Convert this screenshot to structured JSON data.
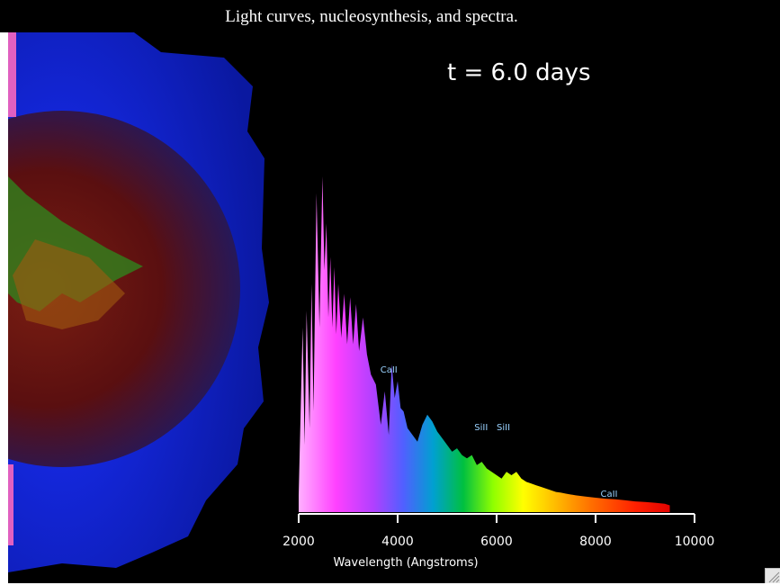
{
  "caption": "Light curves, nucleosynthesis,  and spectra.",
  "time_readout": "t  =  6.0 days",
  "colors": {
    "background": "#000000",
    "caption_bar": "#000000",
    "label_text": "#9ad2ff"
  },
  "icons": {
    "resize": "resize-grip-icon"
  },
  "chart_data": {
    "type": "area",
    "title": "",
    "xlabel": "Wavelength (Angstroms)",
    "ylabel": "",
    "xlim": [
      2000,
      10000
    ],
    "xticks": [
      2000,
      4000,
      6000,
      8000,
      10000
    ],
    "tick_labels": [
      "2000",
      "4000",
      "6000",
      "8000",
      "10000"
    ],
    "fill": "rainbow gradient by wavelength",
    "series": [
      {
        "x": [
          2000,
          2080,
          2120,
          2160,
          2220,
          2260,
          2300,
          2360,
          2420,
          2480,
          2520,
          2560,
          2600,
          2640,
          2680,
          2720,
          2760,
          2800,
          2860,
          2920,
          2980,
          3040,
          3100,
          3160,
          3220,
          3300,
          3380,
          3460,
          3560,
          3660,
          3740,
          3820,
          3880,
          3940,
          4000,
          4060,
          4120,
          4200,
          4300,
          4400,
          4500,
          4600,
          4700,
          4800,
          4900,
          5000,
          5100,
          5200,
          5300,
          5400,
          5500,
          5600,
          5700,
          5800,
          5900,
          6000,
          6100,
          6200,
          6300,
          6400,
          6500,
          6600,
          6700,
          6800,
          6900,
          7000,
          7100,
          7200,
          7300,
          7400,
          7600,
          7800,
          8000,
          8200,
          8400,
          8600,
          8800,
          9000,
          9200,
          9400,
          9500
        ],
        "y": [
          0.05,
          0.55,
          0.2,
          0.6,
          0.25,
          0.68,
          0.3,
          0.95,
          0.55,
          1.0,
          0.72,
          0.86,
          0.58,
          0.76,
          0.55,
          0.73,
          0.53,
          0.68,
          0.52,
          0.65,
          0.5,
          0.64,
          0.5,
          0.62,
          0.48,
          0.58,
          0.47,
          0.41,
          0.38,
          0.26,
          0.36,
          0.23,
          0.44,
          0.34,
          0.39,
          0.31,
          0.3,
          0.25,
          0.23,
          0.21,
          0.26,
          0.29,
          0.27,
          0.24,
          0.22,
          0.2,
          0.18,
          0.19,
          0.17,
          0.16,
          0.17,
          0.14,
          0.15,
          0.13,
          0.12,
          0.11,
          0.1,
          0.12,
          0.11,
          0.12,
          0.1,
          0.09,
          0.085,
          0.08,
          0.075,
          0.07,
          0.065,
          0.06,
          0.058,
          0.055,
          0.05,
          0.046,
          0.043,
          0.04,
          0.038,
          0.035,
          0.032,
          0.03,
          0.028,
          0.025,
          0.02
        ]
      }
    ],
    "annotations": [
      {
        "text": "CaII",
        "x": 3650,
        "y": 0.42
      },
      {
        "text": "SiII",
        "x": 5550,
        "y": 0.25
      },
      {
        "text": "SiII",
        "x": 6000,
        "y": 0.25
      },
      {
        "text": "CaII",
        "x": 8100,
        "y": 0.05
      }
    ]
  }
}
